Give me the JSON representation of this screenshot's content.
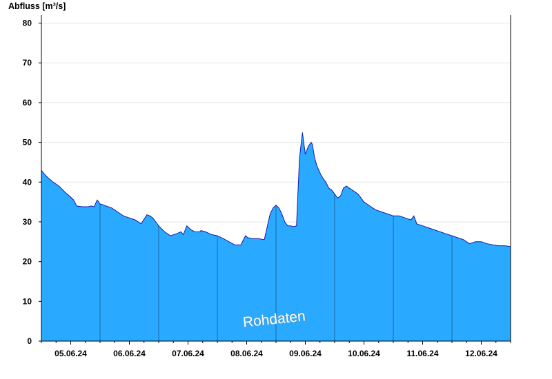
{
  "chart_data": {
    "type": "area",
    "ylabel": "Abfluss [m³/s]",
    "ylim": [
      0,
      82
    ],
    "yticks": [
      0,
      10,
      20,
      30,
      40,
      50,
      60,
      70,
      80
    ],
    "x_start": "04.06.24 12:00",
    "x_end": "12.06.24 12:00",
    "day_ticks": [
      "05.06.24",
      "06.06.24",
      "07.06.24",
      "08.06.24",
      "09.06.24",
      "10.06.24",
      "11.06.24",
      "12.06.24"
    ],
    "grid": "horizontal",
    "watermark": "Rohdaten",
    "colors": {
      "fill": "#29a9ff",
      "line": "#1a1aa8",
      "grid": "#e6e6e6",
      "axis": "#000000"
    },
    "series": [
      {
        "x_days": [
          0.0,
          0.05,
          0.12,
          0.2,
          0.25,
          0.3,
          0.4,
          0.48,
          0.55,
          0.6,
          0.7,
          0.8,
          0.85,
          0.9,
          0.95,
          0.98,
          1.0,
          1.05,
          1.1,
          1.2,
          1.3,
          1.4,
          1.5,
          1.6,
          1.7,
          1.8,
          1.85,
          1.9,
          1.95,
          2.0,
          2.1,
          2.2,
          2.3,
          2.38,
          2.42,
          2.48,
          2.55,
          2.62,
          2.7,
          2.72,
          2.8,
          2.9,
          3.0,
          3.1,
          3.2,
          3.3,
          3.4,
          3.48,
          3.52,
          3.6,
          3.7,
          3.8,
          3.9,
          3.95,
          4.0,
          4.05,
          4.1,
          4.15,
          4.2,
          4.25,
          4.3,
          4.35,
          4.4,
          4.45,
          4.5,
          4.55,
          4.6,
          4.62,
          4.66,
          4.7,
          4.73,
          4.76,
          4.8,
          4.85,
          4.9,
          4.95,
          5.0,
          5.05,
          5.1,
          5.15,
          5.2,
          5.25,
          5.3,
          5.35,
          5.4,
          5.45,
          5.5,
          5.55,
          5.6,
          5.65,
          5.7,
          5.8,
          5.9,
          6.0,
          6.1,
          6.2,
          6.3,
          6.35,
          6.4,
          6.5,
          6.6,
          6.7,
          6.8,
          6.9,
          7.0,
          7.1,
          7.2,
          7.3,
          7.4,
          7.5,
          7.6,
          7.7,
          7.8,
          7.9,
          8.0
        ],
        "values": [
          43.0,
          42.0,
          41.0,
          40.0,
          39.5,
          39.0,
          37.5,
          36.5,
          35.5,
          34.0,
          33.8,
          33.8,
          34.0,
          33.8,
          35.5,
          35.0,
          34.5,
          34.3,
          34.0,
          33.5,
          32.5,
          31.5,
          31.0,
          30.5,
          29.5,
          31.8,
          31.5,
          31.0,
          30.0,
          29.0,
          27.5,
          26.5,
          27.0,
          27.5,
          26.8,
          29.0,
          28.0,
          27.5,
          27.5,
          27.8,
          27.5,
          26.8,
          26.5,
          25.8,
          25.0,
          24.2,
          24.2,
          26.5,
          26.0,
          25.8,
          25.8,
          25.5,
          32.0,
          33.5,
          34.2,
          33.5,
          32.0,
          30.0,
          29.0,
          29.0,
          28.8,
          29.0,
          46.0,
          52.5,
          47.0,
          49.0,
          50.0,
          49.5,
          46.0,
          44.0,
          43.0,
          42.0,
          41.0,
          40.0,
          38.5,
          38.0,
          37.0,
          36.0,
          36.5,
          38.5,
          39.0,
          38.5,
          38.0,
          37.5,
          37.0,
          36.0,
          35.0,
          34.5,
          34.0,
          33.5,
          33.0,
          32.5,
          32.0,
          31.5,
          31.5,
          31.0,
          30.5,
          31.5,
          29.5,
          29.0,
          28.5,
          28.0,
          27.5,
          27.0,
          26.5,
          26.0,
          25.5,
          24.5,
          25.0,
          25.0,
          24.5,
          24.2,
          24.0,
          24.0,
          23.8
        ]
      }
    ]
  }
}
